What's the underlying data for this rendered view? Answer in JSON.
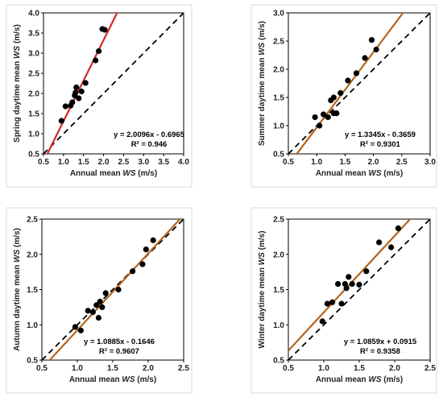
{
  "chart_data": [
    {
      "type": "scatter",
      "xlabel": "Annual mean WS (m/s)",
      "ylabel": "Spring daytime mean WS (m/s)",
      "xlim": [
        0.5,
        4.0
      ],
      "ylim": [
        0.5,
        4.0
      ],
      "xticks": [
        "0.5",
        "1.0",
        "1.5",
        "2.0",
        "2.5",
        "3.0",
        "3.5",
        "4.0"
      ],
      "yticks": [
        "0.5",
        "1.0",
        "1.5",
        "2.0",
        "2.5",
        "3.0",
        "3.5",
        "4.0"
      ],
      "equation": "y = 2.0096x - 0.6965",
      "r2": "R² = 0.946",
      "fit": {
        "slope": 2.0096,
        "intercept": -0.6965
      },
      "points": [
        [
          0.95,
          1.32
        ],
        [
          1.05,
          1.68
        ],
        [
          1.18,
          1.7
        ],
        [
          1.22,
          1.78
        ],
        [
          1.28,
          1.95
        ],
        [
          1.3,
          2.02
        ],
        [
          1.32,
          2.15
        ],
        [
          1.38,
          1.88
        ],
        [
          1.45,
          2.05
        ],
        [
          1.55,
          2.26
        ],
        [
          1.8,
          2.82
        ],
        [
          1.88,
          3.05
        ],
        [
          1.97,
          3.6
        ],
        [
          2.03,
          3.58
        ]
      ],
      "fit_color": "#d62728",
      "reference_line": "1:1 dashed",
      "grid": false
    },
    {
      "type": "scatter",
      "xlabel": "Annual mean WS (m/s)",
      "ylabel": "Summer daytime mean WS (m/s)",
      "xlim": [
        0.5,
        3.0
      ],
      "ylim": [
        0.5,
        3.0
      ],
      "xticks": [
        "0.5",
        "1.0",
        "1.5",
        "2.0",
        "2.5",
        "3.0"
      ],
      "yticks": [
        "0.5",
        "1.0",
        "1.5",
        "2.0",
        "2.5",
        "3.0"
      ],
      "equation": "y = 1.3345x - 0.3659",
      "r2": "R² = 0.9301",
      "fit": {
        "slope": 1.3345,
        "intercept": -0.3659
      },
      "points": [
        [
          0.97,
          1.15
        ],
        [
          1.05,
          1.0
        ],
        [
          1.12,
          1.2
        ],
        [
          1.2,
          1.15
        ],
        [
          1.25,
          1.45
        ],
        [
          1.3,
          1.22
        ],
        [
          1.3,
          1.5
        ],
        [
          1.35,
          1.22
        ],
        [
          1.42,
          1.58
        ],
        [
          1.55,
          1.8
        ],
        [
          1.7,
          1.93
        ],
        [
          1.85,
          2.2
        ],
        [
          1.97,
          2.52
        ],
        [
          2.05,
          2.35
        ]
      ],
      "fit_color": "#b5651d",
      "reference_line": "1:1 dashed",
      "grid": false
    },
    {
      "type": "scatter",
      "xlabel": "Annual mean WS (m/s)",
      "ylabel": "Autumn daytime mean WS (m/s)",
      "xlim": [
        0.5,
        2.5
      ],
      "ylim": [
        0.5,
        2.5
      ],
      "xticks": [
        "0.5",
        "1.0",
        "1.5",
        "2.0",
        "2.5"
      ],
      "yticks": [
        "0.5",
        "1.0",
        "1.5",
        "2.0",
        "2.5"
      ],
      "equation": "y = 1.0885x - 0.1646",
      "r2": "R² = 0.9607",
      "fit": {
        "slope": 1.0885,
        "intercept": -0.1646
      },
      "points": [
        [
          0.97,
          0.97
        ],
        [
          1.05,
          0.92
        ],
        [
          1.15,
          1.2
        ],
        [
          1.22,
          1.18
        ],
        [
          1.27,
          1.28
        ],
        [
          1.3,
          1.1
        ],
        [
          1.32,
          1.33
        ],
        [
          1.35,
          1.25
        ],
        [
          1.4,
          1.45
        ],
        [
          1.58,
          1.5
        ],
        [
          1.78,
          1.76
        ],
        [
          1.92,
          1.86
        ],
        [
          1.97,
          2.07
        ],
        [
          2.07,
          2.2
        ]
      ],
      "fit_color": "#b5651d",
      "reference_line": "1:1 dashed",
      "grid": false
    },
    {
      "type": "scatter",
      "xlabel": "Annual mean WS (m/s)",
      "ylabel": "Winter daytime mean WS (m/s)",
      "xlim": [
        0.5,
        2.5
      ],
      "ylim": [
        0.5,
        2.5
      ],
      "xticks": [
        "0.5",
        "1.0",
        "1.5",
        "2.0",
        "2.5"
      ],
      "yticks": [
        "0.5",
        "1.0",
        "1.5",
        "2.0",
        "2.5"
      ],
      "equation": "y = 1.0859x + 0.0915",
      "r2": "R² = 0.9358",
      "fit": {
        "slope": 1.0859,
        "intercept": 0.0915
      },
      "points": [
        [
          0.98,
          1.05
        ],
        [
          1.05,
          1.3
        ],
        [
          1.12,
          1.32
        ],
        [
          1.2,
          1.58
        ],
        [
          1.25,
          1.3
        ],
        [
          1.3,
          1.58
        ],
        [
          1.32,
          1.52
        ],
        [
          1.35,
          1.68
        ],
        [
          1.4,
          1.58
        ],
        [
          1.5,
          1.57
        ],
        [
          1.6,
          1.76
        ],
        [
          1.78,
          2.17
        ],
        [
          1.95,
          2.1
        ],
        [
          2.05,
          2.37
        ]
      ],
      "fit_color": "#b5651d",
      "reference_line": "1:1 dashed",
      "grid": false
    }
  ]
}
